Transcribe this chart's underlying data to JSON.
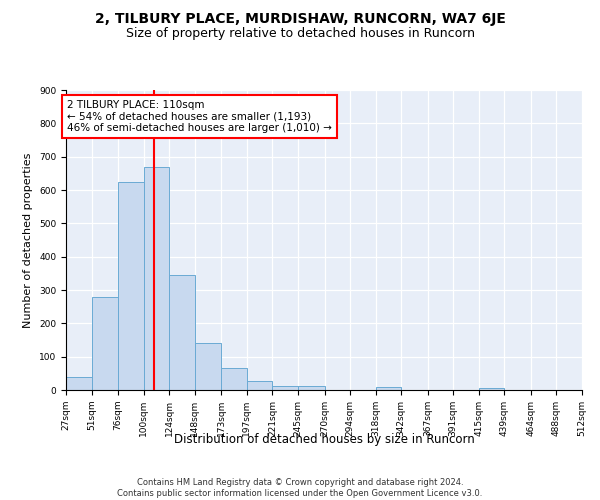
{
  "title": "2, TILBURY PLACE, MURDISHAW, RUNCORN, WA7 6JE",
  "subtitle": "Size of property relative to detached houses in Runcorn",
  "xlabel": "Distribution of detached houses by size in Runcorn",
  "ylabel": "Number of detached properties",
  "bar_color": "#c8d9ef",
  "bar_edge_color": "#6aaad4",
  "background_color": "#e8eef8",
  "grid_color": "#ffffff",
  "annotation_text": "2 TILBURY PLACE: 110sqm\n← 54% of detached houses are smaller (1,193)\n46% of semi-detached houses are larger (1,010) →",
  "annotation_box_color": "white",
  "annotation_box_edge": "red",
  "vline_x": 110,
  "vline_color": "red",
  "bin_edges": [
    27,
    51,
    76,
    100,
    124,
    148,
    173,
    197,
    221,
    245,
    270,
    294,
    318,
    342,
    367,
    391,
    415,
    439,
    464,
    488,
    512
  ],
  "bar_heights": [
    40,
    280,
    623,
    668,
    345,
    142,
    65,
    27,
    12,
    11,
    0,
    0,
    10,
    0,
    0,
    0,
    6,
    0,
    0,
    0
  ],
  "ylim": [
    0,
    900
  ],
  "yticks": [
    0,
    100,
    200,
    300,
    400,
    500,
    600,
    700,
    800,
    900
  ],
  "footnote": "Contains HM Land Registry data © Crown copyright and database right 2024.\nContains public sector information licensed under the Open Government Licence v3.0.",
  "title_fontsize": 10,
  "subtitle_fontsize": 9,
  "ylabel_fontsize": 8,
  "xlabel_fontsize": 8.5,
  "tick_fontsize": 6.5,
  "footnote_fontsize": 6,
  "annotation_fontsize": 7.5
}
